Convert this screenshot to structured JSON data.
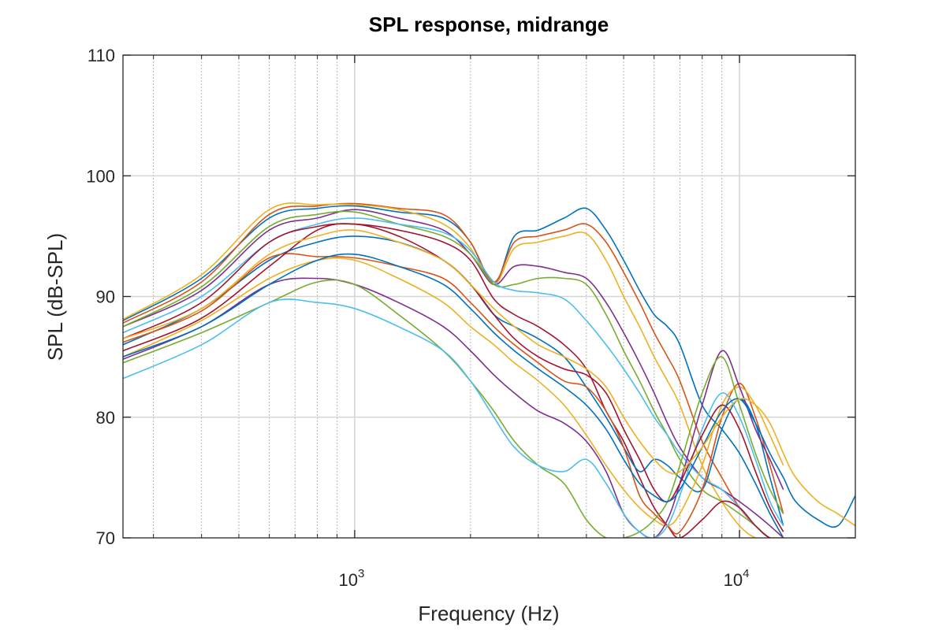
{
  "chart_data": {
    "type": "line",
    "title": "SPL response, midrange",
    "xlabel": "Frequency (Hz)",
    "ylabel": "SPL (dB-SPL)",
    "x_scale": "log",
    "xlim": [
      250,
      20000
    ],
    "ylim": [
      70,
      110
    ],
    "yticks": [
      70,
      80,
      90,
      100,
      110
    ],
    "xticks": [
      {
        "value": 1000,
        "base": "10",
        "exp": "3"
      },
      {
        "value": 10000,
        "base": "10",
        "exp": "4"
      }
    ],
    "grid": true,
    "series": [
      {
        "color": "#0072BD",
        "x": [
          250,
          400,
          600,
          800,
          1000,
          1300,
          1700,
          2000,
          2300,
          2600,
          3000,
          3500,
          4000,
          4500,
          5000,
          5500,
          6000,
          6500,
          7000,
          8000,
          9000,
          10000,
          11000,
          12000,
          13000
        ],
        "y": [
          88.0,
          91.5,
          96.5,
          97.3,
          97.5,
          97.0,
          96.5,
          94.5,
          91.0,
          95.0,
          95.5,
          96.5,
          97.3,
          95.5,
          93.0,
          90.5,
          88.5,
          87.5,
          86.0,
          81.0,
          79.0,
          77.0,
          74.5,
          72.0,
          70.0
        ]
      },
      {
        "color": "#D95319",
        "x": [
          250,
          400,
          600,
          800,
          1000,
          1300,
          1700,
          2000,
          2300,
          2600,
          3000,
          3500,
          4000,
          4500,
          5000,
          5500,
          6000,
          6500,
          7000,
          8000,
          9000,
          10000,
          11000,
          12000,
          13000
        ],
        "y": [
          87.8,
          91.2,
          96.8,
          97.5,
          97.7,
          97.3,
          96.8,
          94.5,
          91.2,
          94.5,
          95.0,
          95.5,
          96.0,
          94.5,
          92.0,
          89.5,
          87.0,
          85.0,
          83.0,
          78.0,
          75.0,
          72.5,
          71.0,
          70.0,
          70.0
        ]
      },
      {
        "color": "#EDB120",
        "x": [
          250,
          400,
          600,
          800,
          1000,
          1300,
          1700,
          2000,
          2300,
          2600,
          3000,
          3500,
          4000,
          4500,
          5000,
          5500,
          6000,
          6500,
          7000,
          8000,
          9000,
          10000,
          11000,
          12000,
          13000
        ],
        "y": [
          88.1,
          91.8,
          97.2,
          97.6,
          97.6,
          97.2,
          96.0,
          94.0,
          91.0,
          94.0,
          94.5,
          95.0,
          95.2,
          93.0,
          90.0,
          87.5,
          85.0,
          83.0,
          81.0,
          76.0,
          73.0,
          71.0,
          70.0,
          70.0,
          70.0
        ]
      },
      {
        "color": "#7E2F8E",
        "x": [
          250,
          400,
          600,
          800,
          1000,
          1300,
          1700,
          2000,
          2300,
          2600,
          3000,
          3500,
          4000,
          4500,
          5000,
          5500,
          6000,
          6500,
          7000,
          8000,
          9000,
          10000,
          11000,
          12000,
          13000
        ],
        "y": [
          87.5,
          90.5,
          95.5,
          96.5,
          97.2,
          96.5,
          95.5,
          93.5,
          91.0,
          92.5,
          92.5,
          92.0,
          91.5,
          89.5,
          87.0,
          84.5,
          82.0,
          79.5,
          77.5,
          75.0,
          74.0,
          73.0,
          72.0,
          71.0,
          70.0
        ]
      },
      {
        "color": "#77AC30",
        "x": [
          250,
          400,
          600,
          800,
          1000,
          1300,
          1700,
          2000,
          2300,
          2600,
          3000,
          3500,
          4000,
          4500,
          5000,
          5500,
          6000,
          6500,
          7000,
          8000,
          9000,
          10000,
          11000,
          12000,
          13000
        ],
        "y": [
          87.5,
          90.8,
          95.8,
          96.8,
          97.0,
          96.0,
          95.0,
          93.5,
          91.0,
          91.0,
          91.5,
          91.5,
          91.0,
          88.5,
          85.5,
          83.0,
          80.5,
          78.5,
          76.5,
          74.0,
          73.0,
          72.0,
          71.0,
          70.0,
          70.0
        ]
      },
      {
        "color": "#4DBEEE",
        "x": [
          250,
          400,
          600,
          800,
          1000,
          1300,
          1700,
          2000,
          2300,
          2600,
          3000,
          3500,
          4000,
          4500,
          5000,
          5500,
          6000,
          6500,
          7000,
          8000,
          9000,
          10000,
          11000,
          12000,
          13000
        ],
        "y": [
          87.0,
          90.0,
          94.5,
          96.0,
          96.5,
          96.0,
          95.3,
          93.8,
          91.2,
          90.5,
          90.3,
          89.8,
          88.0,
          86.0,
          84.0,
          82.0,
          80.0,
          78.5,
          77.0,
          75.0,
          74.0,
          72.5,
          71.0,
          70.0,
          70.0
        ]
      },
      {
        "color": "#A2142F",
        "x": [
          250,
          400,
          600,
          800,
          1000,
          1300,
          1700,
          2000,
          2300,
          2600,
          3000,
          3500,
          4000,
          4500,
          5000,
          5500,
          6000,
          6500,
          7000,
          8000,
          9000,
          10000,
          11000,
          12000,
          13000
        ],
        "y": [
          86.5,
          89.5,
          94.5,
          95.8,
          96.0,
          95.5,
          94.5,
          93.0,
          89.8,
          88.5,
          87.5,
          86.0,
          84.0,
          80.5,
          78.0,
          75.0,
          72.5,
          71.0,
          70.0,
          71.5,
          73.0,
          72.5,
          71.0,
          70.0,
          70.0
        ]
      },
      {
        "color": "#0072BD",
        "x": [
          250,
          400,
          600,
          800,
          1000,
          1300,
          1700,
          2000,
          2300,
          2600,
          3000,
          3500,
          4000,
          4500,
          5000,
          5500,
          6000,
          6500,
          7000,
          8000,
          9000,
          10000,
          11000,
          12000,
          13000
        ],
        "y": [
          86.0,
          89.0,
          93.0,
          94.5,
          95.0,
          94.5,
          93.0,
          91.0,
          88.5,
          87.5,
          86.5,
          85.0,
          82.5,
          80.0,
          77.5,
          75.5,
          76.5,
          76.0,
          75.0,
          74.0,
          79.0,
          81.5,
          79.5,
          75.0,
          71.0
        ]
      },
      {
        "color": "#D95319",
        "x": [
          250,
          400,
          600,
          800,
          1000,
          1300,
          1700,
          2000,
          2300,
          2600,
          3000,
          3500,
          4000,
          4500,
          5000,
          5500,
          6000,
          6500,
          7000,
          8000,
          9000,
          10000,
          11000,
          12000,
          13000
        ],
        "y": [
          86.2,
          88.8,
          93.2,
          93.3,
          93.2,
          92.5,
          91.5,
          89.5,
          87.5,
          86.0,
          84.5,
          83.0,
          82.5,
          80.5,
          77.5,
          73.5,
          72.0,
          71.0,
          70.5,
          74.0,
          80.0,
          82.8,
          80.0,
          76.0,
          72.0
        ]
      },
      {
        "color": "#EDB120",
        "x": [
          250,
          400,
          600,
          800,
          1000,
          1300,
          1700,
          2000,
          2300,
          2600,
          3000,
          3500,
          4000,
          4500,
          5000,
          5500,
          6000,
          6500,
          7000,
          8000,
          9000,
          10000,
          11000,
          12000,
          13000
        ],
        "y": [
          85.0,
          88.0,
          91.5,
          93.0,
          93.0,
          91.5,
          89.5,
          87.5,
          86.0,
          84.5,
          83.0,
          81.0,
          78.5,
          76.0,
          74.0,
          72.5,
          71.5,
          71.0,
          72.0,
          76.0,
          81.0,
          82.5,
          81.0,
          78.5,
          76.0
        ]
      },
      {
        "color": "#7E2F8E",
        "x": [
          250,
          400,
          600,
          800,
          1000,
          1300,
          1700,
          2000,
          2300,
          2600,
          3000,
          3500,
          4000,
          4500,
          5000,
          5500,
          6000,
          6500,
          7000,
          8000,
          9000,
          10000,
          11000,
          12000,
          13000
        ],
        "y": [
          84.8,
          87.5,
          91.0,
          91.5,
          91.0,
          89.5,
          87.5,
          85.5,
          83.5,
          82.0,
          80.5,
          79.5,
          78.0,
          75.5,
          72.0,
          70.5,
          70.0,
          71.5,
          74.5,
          81.0,
          85.5,
          82.5,
          79.0,
          76.5,
          74.0
        ]
      },
      {
        "color": "#77AC30",
        "x": [
          250,
          400,
          600,
          800,
          1000,
          1300,
          1700,
          2000,
          2300,
          2600,
          3000,
          3500,
          4000,
          4500,
          5000,
          5500,
          6000,
          6500,
          7000,
          8000,
          9000,
          10000,
          11000,
          12000,
          13000
        ],
        "y": [
          84.5,
          87.0,
          89.5,
          91.2,
          91.0,
          88.5,
          85.5,
          83.0,
          80.5,
          78.0,
          76.0,
          74.5,
          71.5,
          70.0,
          70.0,
          70.5,
          71.5,
          73.0,
          76.0,
          82.0,
          85.0,
          81.0,
          77.0,
          74.0,
          72.0
        ]
      },
      {
        "color": "#4DBEEE",
        "x": [
          250,
          400,
          600,
          800,
          1000,
          1300,
          1700,
          2000,
          2300,
          2600,
          3000,
          3500,
          4000,
          4500,
          5000,
          5500,
          6000,
          6500,
          7000,
          8000,
          9000,
          10000,
          11000,
          12000,
          13000
        ],
        "y": [
          83.2,
          86.0,
          89.5,
          89.5,
          89.0,
          87.5,
          85.5,
          83.0,
          80.0,
          77.5,
          76.0,
          75.5,
          76.5,
          74.5,
          72.0,
          70.5,
          70.0,
          71.0,
          73.5,
          79.0,
          82.0,
          80.0,
          76.5,
          73.0,
          71.0
        ]
      },
      {
        "color": "#A2142F",
        "x": [
          250,
          400,
          600,
          800,
          1000,
          1300,
          1700,
          2000,
          2300,
          2600,
          3000,
          3500,
          4000,
          4500,
          5000,
          5500,
          6000,
          6500,
          7000,
          8000,
          9000,
          10000,
          11000,
          12000,
          13000
        ],
        "y": [
          85.5,
          88.2,
          92.5,
          95.5,
          96.0,
          95.0,
          93.0,
          91.0,
          88.5,
          86.5,
          85.0,
          84.0,
          83.5,
          82.0,
          79.0,
          76.5,
          74.0,
          73.0,
          74.5,
          78.5,
          81.0,
          79.0,
          75.5,
          72.5,
          70.5
        ]
      },
      {
        "color": "#0072BD",
        "x": [
          250,
          400,
          600,
          800,
          1000,
          1300,
          1700,
          2000,
          2300,
          2600,
          3000,
          3500,
          4000,
          4500,
          5000,
          5500,
          6000,
          6500,
          7000,
          8000,
          9000,
          10000,
          11000,
          12000,
          13000,
          14000,
          16000,
          18000,
          20000
        ],
        "y": [
          85.0,
          87.5,
          91.0,
          93.0,
          93.5,
          92.5,
          91.0,
          89.0,
          87.0,
          85.5,
          84.0,
          82.5,
          81.0,
          79.0,
          76.5,
          74.5,
          73.5,
          73.0,
          74.0,
          77.5,
          80.5,
          81.5,
          79.5,
          77.0,
          75.0,
          73.0,
          71.5,
          71.0,
          73.5
        ]
      },
      {
        "color": "#EDB120",
        "x": [
          250,
          400,
          600,
          800,
          1000,
          1300,
          1700,
          2000,
          2300,
          2600,
          3000,
          3500,
          4000,
          4500,
          5000,
          5500,
          6000,
          6500,
          7000,
          8000,
          9000,
          10000,
          11000,
          12000,
          13000,
          14000,
          16000,
          18000,
          20000
        ],
        "y": [
          86.5,
          89.0,
          93.5,
          95.0,
          95.5,
          94.5,
          93.0,
          91.0,
          89.0,
          87.5,
          86.0,
          85.0,
          84.0,
          82.5,
          80.0,
          78.0,
          76.5,
          75.5,
          75.5,
          77.5,
          80.0,
          81.5,
          81.0,
          79.5,
          77.0,
          75.0,
          73.0,
          72.0,
          71.0
        ]
      }
    ]
  }
}
